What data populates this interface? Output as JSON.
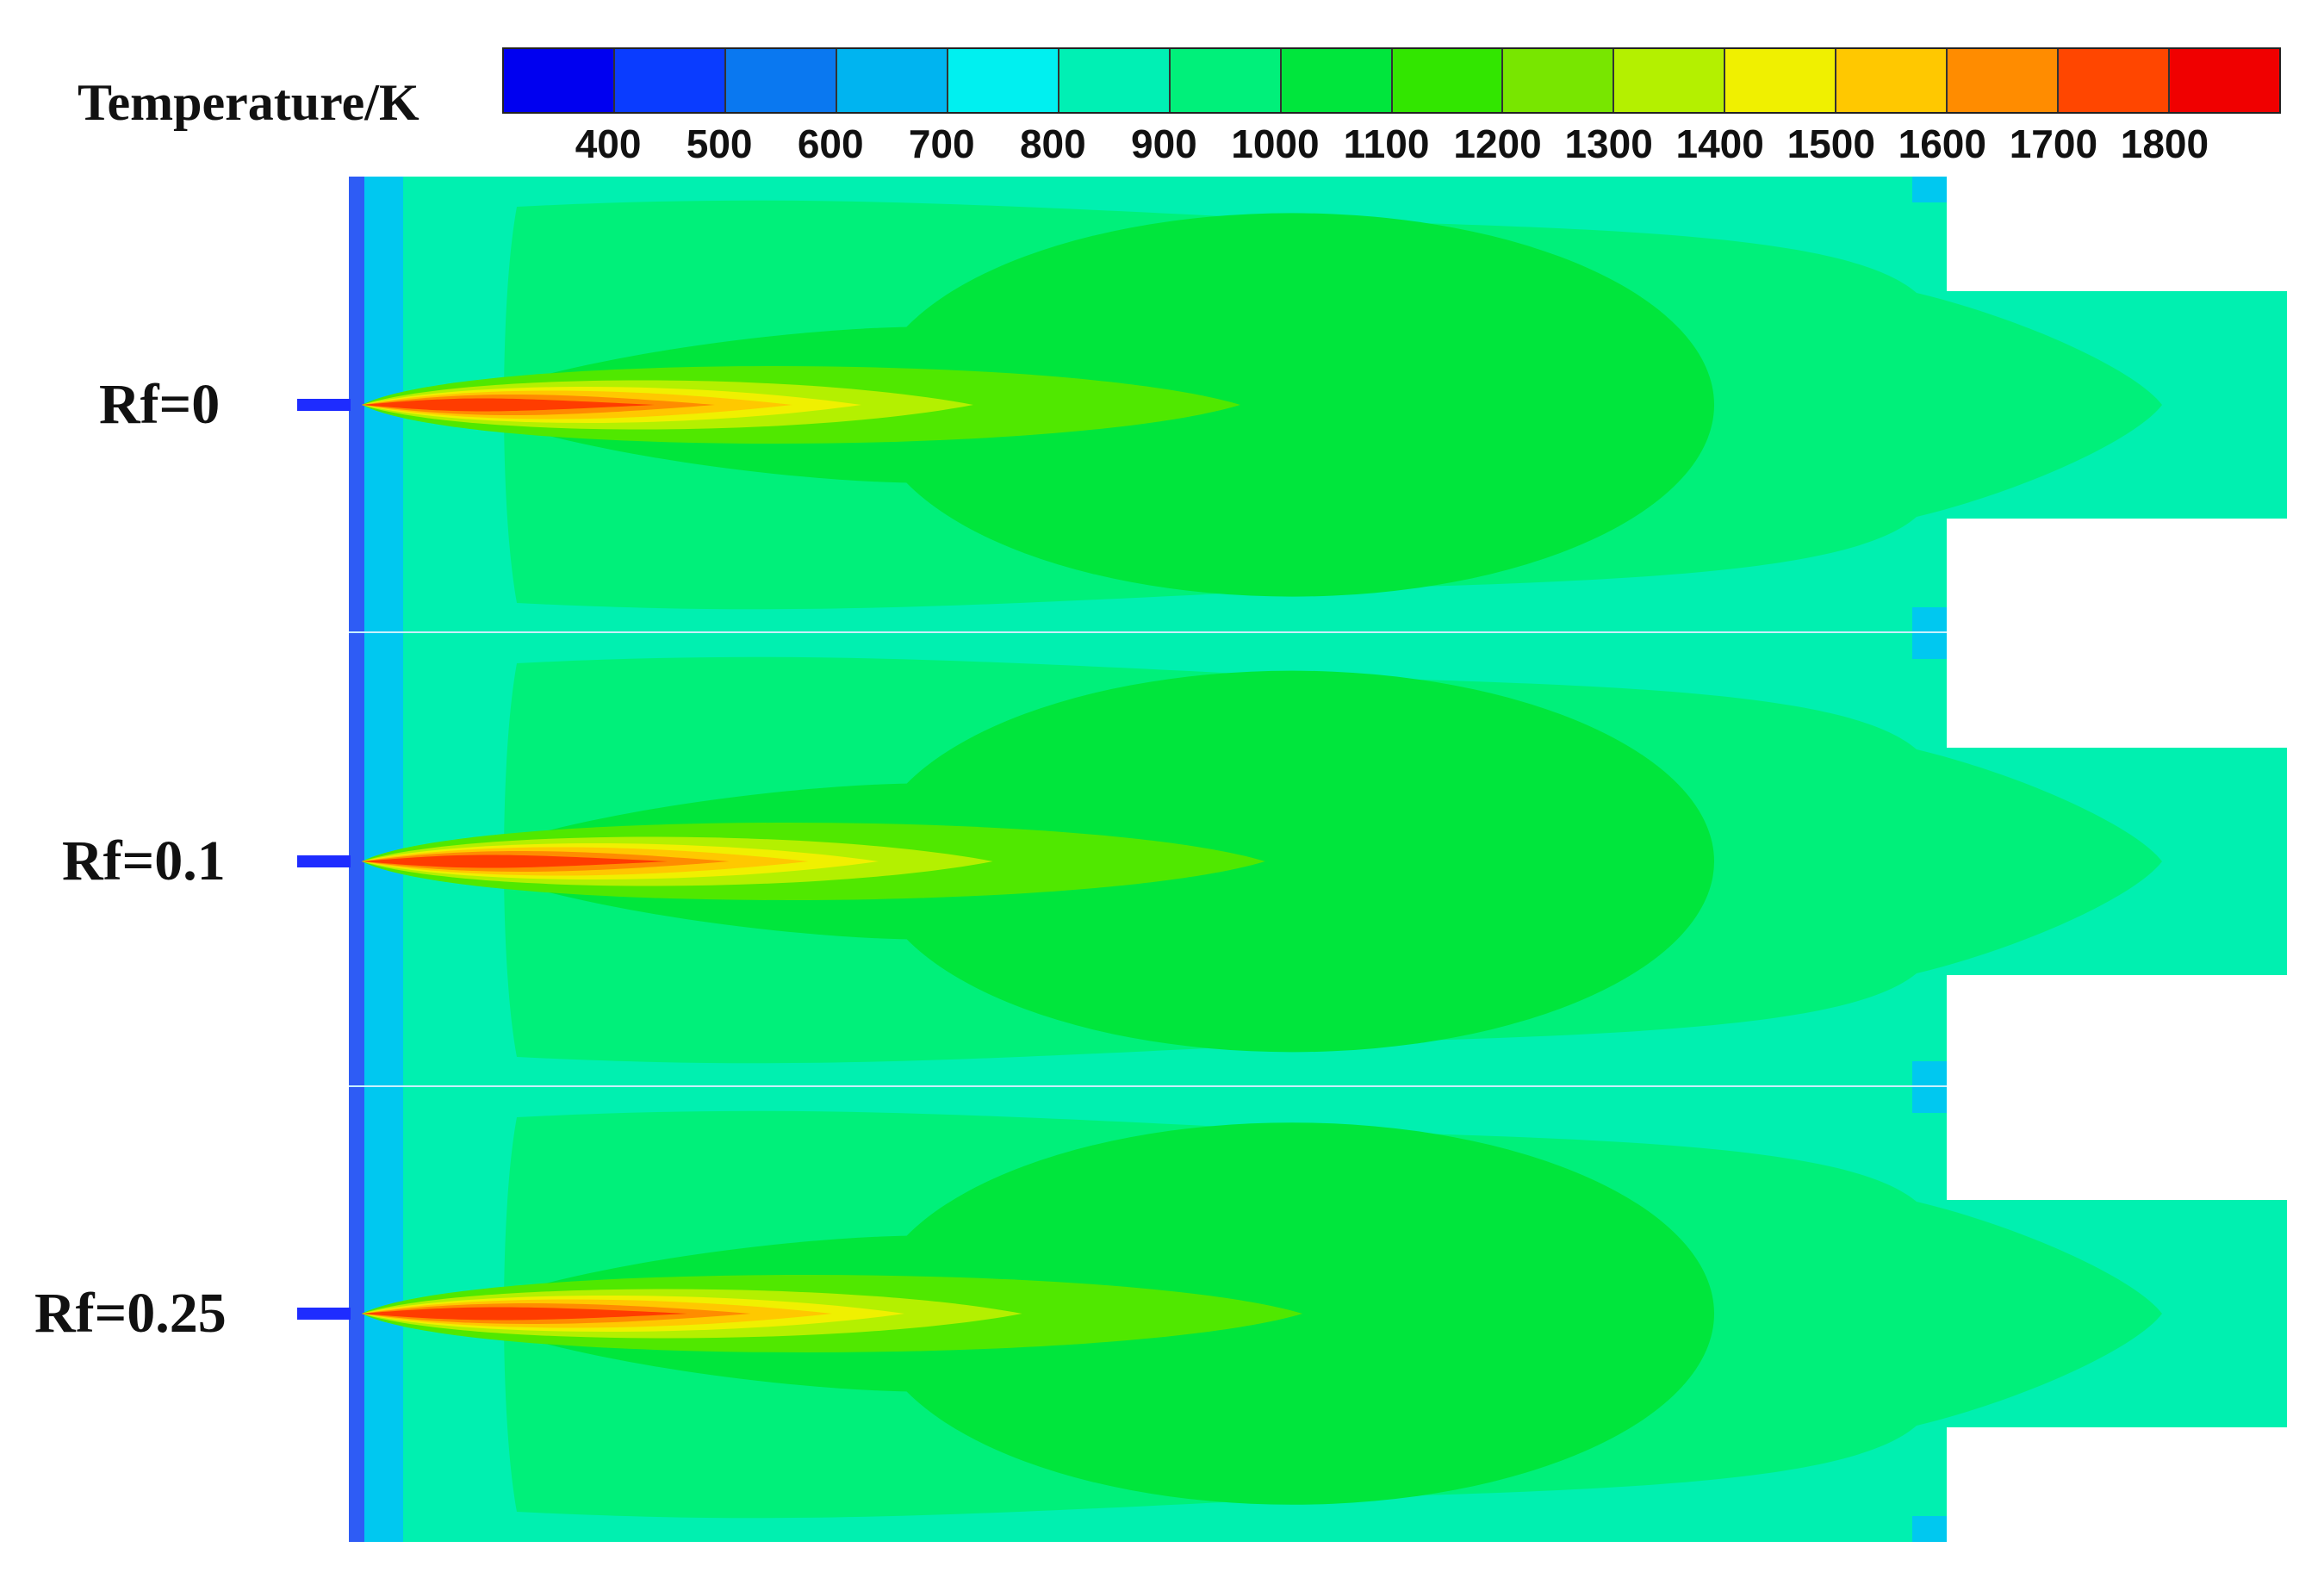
{
  "legend": {
    "title": "Temperature/K",
    "ticks": [
      "400",
      "500",
      "600",
      "700",
      "800",
      "900",
      "1000",
      "1100",
      "1200",
      "1300",
      "1400",
      "1500",
      "1600",
      "1700",
      "1800"
    ],
    "colors": [
      "#0000f0",
      "#0a3cff",
      "#0a78f0",
      "#00b4f0",
      "#00f0f0",
      "#00f0b4",
      "#00f07a",
      "#00e63c",
      "#32e600",
      "#78e600",
      "#b4f000",
      "#f0f000",
      "#ffc800",
      "#ff8c00",
      "#ff4600",
      "#f00000"
    ]
  },
  "cases": [
    {
      "label": "Rf=0"
    },
    {
      "label": "Rf=0.1"
    },
    {
      "label": "Rf=0.25"
    }
  ],
  "field_colors": {
    "wall": "#2e5cf5",
    "edge": "#00c8f0",
    "background": "#00f0b0",
    "outer_green": "#00f07a",
    "core_green": "#00e63c",
    "lime": "#50e800",
    "yellow_green": "#b4f000",
    "yellow": "#f0f000",
    "orange": "#ffc800",
    "dark_orange": "#ff8c00",
    "red": "#ff3c00",
    "nozzle": "#1e2cff"
  }
}
